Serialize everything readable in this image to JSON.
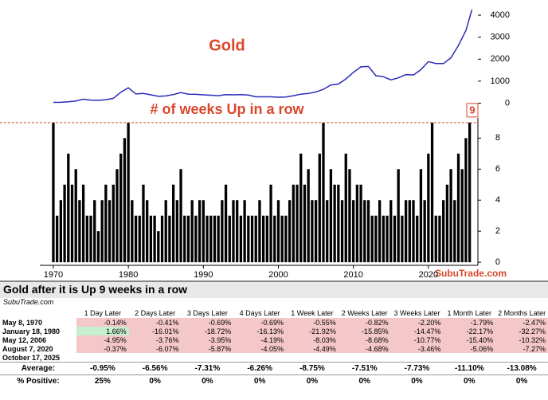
{
  "chart_data": [
    {
      "type": "line",
      "title": "Gold",
      "x": [
        1970,
        1971,
        1972,
        1973,
        1974,
        1975,
        1976,
        1977,
        1978,
        1979,
        1980,
        1981,
        1982,
        1983,
        1984,
        1985,
        1986,
        1987,
        1988,
        1989,
        1990,
        1991,
        1992,
        1993,
        1994,
        1995,
        1996,
        1997,
        1998,
        1999,
        2000,
        2001,
        2002,
        2003,
        2004,
        2005,
        2006,
        2007,
        2008,
        2009,
        2010,
        2011,
        2012,
        2013,
        2014,
        2015,
        2016,
        2017,
        2018,
        2019,
        2020,
        2021,
        2022,
        2023,
        2024,
        2025,
        2025.8
      ],
      "series": [
        {
          "color": "#2a2ab8",
          "values": [
            35,
            40,
            60,
            100,
            180,
            140,
            130,
            160,
            220,
            500,
            700,
            420,
            440,
            380,
            310,
            330,
            390,
            480,
            410,
            400,
            380,
            360,
            340,
            390,
            380,
            385,
            370,
            290,
            290,
            290,
            270,
            280,
            340,
            410,
            440,
            510,
            630,
            830,
            870,
            1100,
            1400,
            1650,
            1670,
            1250,
            1200,
            1060,
            1150,
            1300,
            1280,
            1520,
            1890,
            1800,
            1800,
            2060,
            2620,
            3300,
            4250
          ]
        }
      ],
      "xlim": [
        1968.2,
        2026.6
      ],
      "ylim": [
        -200,
        4400
      ],
      "yticks": [
        0,
        1000,
        2000,
        3000,
        4000
      ]
    },
    {
      "type": "bar",
      "title": "# of weeks Up in a row",
      "x": [
        1970,
        1970.5,
        1971,
        1971.5,
        1972,
        1972.5,
        1973,
        1973.5,
        1974,
        1974.5,
        1975,
        1975.5,
        1976,
        1976.5,
        1977,
        1977.5,
        1978,
        1978.5,
        1979,
        1979.5,
        1980,
        1980.5,
        1981,
        1981.5,
        1982,
        1982.5,
        1983,
        1983.5,
        1984,
        1984.5,
        1985,
        1985.5,
        1986,
        1986.5,
        1987,
        1987.5,
        1988,
        1988.5,
        1989,
        1989.5,
        1990,
        1990.5,
        1991,
        1991.5,
        1992,
        1992.5,
        1993,
        1993.5,
        1994,
        1994.5,
        1995,
        1995.5,
        1996,
        1996.5,
        1997,
        1997.5,
        1998,
        1998.5,
        1999,
        1999.5,
        2000,
        2000.5,
        2001,
        2001.5,
        2002,
        2002.5,
        2003,
        2003.5,
        2004,
        2004.5,
        2005,
        2005.5,
        2006,
        2006.5,
        2007,
        2007.5,
        2008,
        2008.5,
        2009,
        2009.5,
        2010,
        2010.5,
        2011,
        2011.5,
        2012,
        2012.5,
        2013,
        2013.5,
        2014,
        2014.5,
        2015,
        2015.5,
        2016,
        2016.5,
        2017,
        2017.5,
        2018,
        2018.5,
        2019,
        2019.5,
        2020,
        2020.5,
        2021,
        2021.5,
        2022,
        2022.5,
        2023,
        2023.5,
        2024,
        2024.5,
        2025,
        2025.5
      ],
      "values": [
        9,
        3,
        4,
        5,
        7,
        5,
        6,
        4,
        5,
        3,
        3,
        4,
        2,
        4,
        5,
        4,
        5,
        6,
        7,
        8,
        9,
        4,
        3,
        3,
        5,
        4,
        3,
        3,
        2,
        3,
        4,
        3,
        5,
        4,
        6,
        3,
        3,
        4,
        3,
        4,
        4,
        3,
        3,
        3,
        3,
        4,
        5,
        3,
        4,
        4,
        3,
        4,
        3,
        3,
        3,
        4,
        3,
        3,
        5,
        3,
        4,
        3,
        3,
        4,
        5,
        5,
        7,
        5,
        6,
        4,
        4,
        7,
        9,
        4,
        6,
        5,
        5,
        4,
        7,
        6,
        4,
        5,
        5,
        4,
        4,
        3,
        3,
        4,
        3,
        3,
        4,
        3,
        6,
        3,
        4,
        4,
        4,
        3,
        6,
        4,
        7,
        9,
        3,
        3,
        4,
        5,
        6,
        4,
        7,
        6,
        8,
        9
      ],
      "color": "#000000",
      "xlim": [
        1968.2,
        2026.6
      ],
      "ylim": [
        -0.2,
        9.3
      ],
      "yticks": [
        0,
        2,
        4,
        6,
        8
      ],
      "xticks": [
        1970,
        1980,
        1990,
        2000,
        2010,
        2020
      ],
      "reference": 9,
      "source": "SubuTrade.com"
    }
  ],
  "table": {
    "title": "Gold after it is Up 9 weeks in a row",
    "source": "SubuTrade.com",
    "columns": [
      "1 Day Later",
      "2 Days Later",
      "3 Days Later",
      "4 Days Later",
      "1 Week Later",
      "2 Weeks Later",
      "3 Weeks Later",
      "1 Month Later",
      "2 Months Later"
    ],
    "rows": [
      {
        "label": "May 8, 1970",
        "values": [
          "-0.14%",
          "-0.41%",
          "-0.69%",
          "-0.69%",
          "-0.55%",
          "-0.82%",
          "-2.20%",
          "-1.79%",
          "-2.47%"
        ]
      },
      {
        "label": "January 18, 1980",
        "values": [
          "1.66%",
          "-16.01%",
          "-18.72%",
          "-16.13%",
          "-21.92%",
          "-15.85%",
          "-14.47%",
          "-22.17%",
          "-32.27%"
        ]
      },
      {
        "label": "May 12, 2006",
        "values": [
          "-4.95%",
          "-3.76%",
          "-3.95%",
          "-4.19%",
          "-8.03%",
          "-8.68%",
          "-10.77%",
          "-15.40%",
          "-10.32%"
        ]
      },
      {
        "label": "August 7, 2020",
        "values": [
          "-0.37%",
          "-6.07%",
          "-5.87%",
          "-4.05%",
          "-4.49%",
          "-4.68%",
          "-3.46%",
          "-5.06%",
          "-7.27%"
        ]
      },
      {
        "label": "October 17, 2025",
        "values": []
      }
    ],
    "summary": [
      {
        "label": "Average:",
        "values": [
          "-0.95%",
          "-6.56%",
          "-7.31%",
          "-6.26%",
          "-8.75%",
          "-7.51%",
          "-7.73%",
          "-11.10%",
          "-13.08%"
        ]
      },
      {
        "label": "% Positive:",
        "values": [
          "25%",
          "0%",
          "0%",
          "0%",
          "0%",
          "0%",
          "0%",
          "0%",
          "0%"
        ]
      }
    ]
  }
}
